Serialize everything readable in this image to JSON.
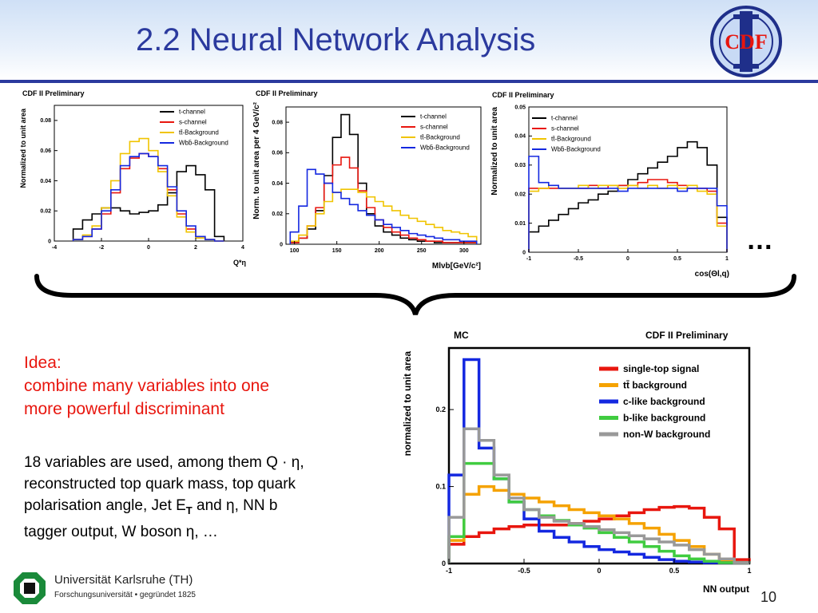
{
  "slide": {
    "title": "2.2 Neural Network Analysis",
    "logo_text": "CDF",
    "ellipsis": "…",
    "idea_lines": [
      "Idea:",
      "combine many variables into one",
      "more powerful discriminant"
    ],
    "body_parts": {
      "p1": "18 variables are used, among them Q · η,",
      "p2": "reconstructed top quark mass, top quark",
      "p3a": "polarisation angle, Jet E",
      "p3sub": "T",
      "p3b": " and η, NN b",
      "p4": "tagger output, W boson η, …"
    },
    "university": "Universität Karlsruhe (TH)",
    "university_sub": "Forschungsuniversität • gegründet 1825",
    "page_number": "10"
  },
  "colors": {
    "title": "#2b3a9e",
    "idea": "#e8160e",
    "tchannel": "#000000",
    "schannel": "#e8160e",
    "ttbar": "#f0c400",
    "wbb": "#1428e0",
    "nn_signal": "#e8160e",
    "nn_tt": "#f5a200",
    "nn_c": "#1428e0",
    "nn_b": "#40cc40",
    "nn_nonw": "#999999"
  },
  "chart_data": [
    {
      "type": "line",
      "title": "CDF II Preliminary",
      "xlabel": "Q*η",
      "ylabel": "Normalized to unit area",
      "xlim": [
        -4,
        4
      ],
      "ylim": [
        0,
        0.09
      ],
      "xticks": [
        "-4",
        "-2",
        "0",
        "2",
        "4"
      ],
      "yticks": [
        "0",
        "0.02",
        "0.04",
        "0.06",
        "0.08"
      ],
      "legend_position": "top-right",
      "x": [
        -3,
        -2.6,
        -2.2,
        -1.8,
        -1.4,
        -1.0,
        -0.6,
        -0.2,
        0.2,
        0.6,
        1.0,
        1.4,
        1.8,
        2.2,
        2.6,
        3.0
      ],
      "series": [
        {
          "name": "t-channel",
          "color": "#000000",
          "values": [
            0.008,
            0.014,
            0.018,
            0.022,
            0.022,
            0.02,
            0.018,
            0.019,
            0.02,
            0.024,
            0.032,
            0.046,
            0.05,
            0.044,
            0.034,
            0.003
          ]
        },
        {
          "name": "s-channel",
          "color": "#e8160e",
          "values": [
            0.001,
            0.003,
            0.008,
            0.018,
            0.032,
            0.048,
            0.055,
            0.058,
            0.056,
            0.048,
            0.034,
            0.018,
            0.008,
            0.003,
            0.001,
            0.0
          ]
        },
        {
          "name": "tt̄-Background",
          "color": "#f0c400",
          "values": [
            0.001,
            0.004,
            0.01,
            0.022,
            0.04,
            0.058,
            0.066,
            0.068,
            0.06,
            0.046,
            0.03,
            0.016,
            0.006,
            0.002,
            0.001,
            0.0
          ]
        },
        {
          "name": "Wbb̄-Background",
          "color": "#1428e0",
          "values": [
            0.001,
            0.003,
            0.008,
            0.02,
            0.034,
            0.05,
            0.056,
            0.058,
            0.056,
            0.05,
            0.036,
            0.02,
            0.01,
            0.003,
            0.001,
            0.0
          ]
        }
      ]
    },
    {
      "type": "line",
      "title": "CDF II Preliminary",
      "xlabel": "Mlνb[GeV/c²]",
      "ylabel": "Norm. to unit area per 4 GeV/c²",
      "xlim": [
        90,
        320
      ],
      "ylim": [
        0,
        0.09
      ],
      "xticks": [
        "100",
        "150",
        "200",
        "250",
        "300"
      ],
      "yticks": [
        "0",
        "0.02",
        "0.04",
        "0.06",
        "0.08"
      ],
      "legend_position": "top-right",
      "x": [
        100,
        110,
        120,
        130,
        140,
        150,
        160,
        170,
        180,
        190,
        200,
        210,
        220,
        230,
        240,
        250,
        260,
        270,
        280,
        290,
        300,
        310
      ],
      "series": [
        {
          "name": "t-channel",
          "color": "#000000",
          "values": [
            0.001,
            0.004,
            0.01,
            0.022,
            0.045,
            0.07,
            0.085,
            0.072,
            0.04,
            0.02,
            0.012,
            0.008,
            0.006,
            0.004,
            0.003,
            0.002,
            0.002,
            0.001,
            0.001,
            0.001,
            0.001,
            0.001
          ]
        },
        {
          "name": "s-channel",
          "color": "#e8160e",
          "values": [
            0.001,
            0.004,
            0.012,
            0.024,
            0.04,
            0.052,
            0.057,
            0.05,
            0.035,
            0.024,
            0.016,
            0.011,
            0.008,
            0.006,
            0.004,
            0.003,
            0.002,
            0.002,
            0.001,
            0.001,
            0.001,
            0.001
          ]
        },
        {
          "name": "tt̄-Background",
          "color": "#f0c400",
          "values": [
            0.002,
            0.006,
            0.012,
            0.02,
            0.028,
            0.034,
            0.036,
            0.036,
            0.034,
            0.031,
            0.028,
            0.025,
            0.022,
            0.019,
            0.017,
            0.015,
            0.013,
            0.011,
            0.009,
            0.008,
            0.007,
            0.005
          ]
        },
        {
          "name": "Wbb̄-Background",
          "color": "#1428e0",
          "values": [
            0.008,
            0.025,
            0.049,
            0.046,
            0.04,
            0.034,
            0.03,
            0.026,
            0.022,
            0.019,
            0.016,
            0.013,
            0.011,
            0.009,
            0.007,
            0.006,
            0.005,
            0.004,
            0.003,
            0.003,
            0.002,
            0.002
          ]
        }
      ]
    },
    {
      "type": "line",
      "title": "CDF II Preliminary",
      "xlabel": "cos(Θl,q)",
      "ylabel": "Normalized to unit area",
      "xlim": [
        -1,
        1
      ],
      "ylim": [
        0,
        0.05
      ],
      "xticks": [
        "-1",
        "-0.5",
        "0",
        "0.5",
        "1"
      ],
      "yticks": [
        "0",
        "0.01",
        "0.02",
        "0.03",
        "0.04",
        "0.05"
      ],
      "legend_position": "top-right",
      "x": [
        -0.95,
        -0.85,
        -0.75,
        -0.65,
        -0.55,
        -0.45,
        -0.35,
        -0.25,
        -0.15,
        -0.05,
        0.05,
        0.15,
        0.25,
        0.35,
        0.45,
        0.55,
        0.65,
        0.75,
        0.85,
        0.95
      ],
      "series": [
        {
          "name": "t-channel",
          "color": "#000000",
          "values": [
            0.007,
            0.009,
            0.011,
            0.013,
            0.015,
            0.017,
            0.018,
            0.02,
            0.021,
            0.023,
            0.025,
            0.027,
            0.029,
            0.031,
            0.033,
            0.036,
            0.038,
            0.036,
            0.03,
            0.012
          ]
        },
        {
          "name": "s-channel",
          "color": "#e8160e",
          "values": [
            0.022,
            0.022,
            0.022,
            0.022,
            0.022,
            0.022,
            0.023,
            0.022,
            0.023,
            0.023,
            0.023,
            0.024,
            0.025,
            0.025,
            0.024,
            0.023,
            0.022,
            0.022,
            0.021,
            0.01
          ]
        },
        {
          "name": "tt̄-Background",
          "color": "#f0c400",
          "values": [
            0.021,
            0.022,
            0.023,
            0.022,
            0.022,
            0.023,
            0.022,
            0.023,
            0.023,
            0.022,
            0.023,
            0.022,
            0.023,
            0.022,
            0.023,
            0.022,
            0.023,
            0.021,
            0.02,
            0.009
          ]
        },
        {
          "name": "Wbb̄-Background",
          "color": "#1428e0",
          "values": [
            0.033,
            0.024,
            0.023,
            0.022,
            0.022,
            0.022,
            0.022,
            0.022,
            0.022,
            0.021,
            0.022,
            0.022,
            0.022,
            0.022,
            0.022,
            0.021,
            0.022,
            0.022,
            0.022,
            0.016
          ]
        }
      ]
    },
    {
      "type": "line",
      "title": "CDF II Preliminary",
      "subtitle": "MC",
      "xlabel": "NN output",
      "ylabel": "normalized to unit area",
      "xlim": [
        -1,
        1
      ],
      "ylim": [
        0,
        0.28
      ],
      "xticks": [
        "-1",
        "-0.5",
        "0",
        "0.5",
        "1"
      ],
      "yticks": [
        "0",
        "0.1",
        "0.2"
      ],
      "legend_position": "top-right",
      "x": [
        -0.95,
        -0.85,
        -0.75,
        -0.65,
        -0.55,
        -0.45,
        -0.35,
        -0.25,
        -0.15,
        -0.05,
        0.05,
        0.15,
        0.25,
        0.35,
        0.45,
        0.55,
        0.65,
        0.75,
        0.85,
        0.95
      ],
      "series": [
        {
          "name": "single-top signal",
          "color": "#e8160e",
          "values": [
            0.025,
            0.035,
            0.04,
            0.045,
            0.048,
            0.05,
            0.05,
            0.05,
            0.052,
            0.055,
            0.058,
            0.062,
            0.066,
            0.07,
            0.073,
            0.074,
            0.072,
            0.06,
            0.045,
            0.005
          ]
        },
        {
          "name": "tt̄ background",
          "color": "#f5a200",
          "values": [
            0.03,
            0.09,
            0.1,
            0.095,
            0.09,
            0.085,
            0.08,
            0.075,
            0.07,
            0.066,
            0.062,
            0.058,
            0.052,
            0.046,
            0.038,
            0.03,
            0.022,
            0.012,
            0.004,
            0.001
          ]
        },
        {
          "name": "c-like background",
          "color": "#1428e0",
          "values": [
            0.115,
            0.265,
            0.15,
            0.11,
            0.08,
            0.058,
            0.042,
            0.034,
            0.028,
            0.022,
            0.018,
            0.015,
            0.012,
            0.008,
            0.005,
            0.003,
            0.002,
            0.001,
            0.001,
            0.001
          ]
        },
        {
          "name": "b-like background",
          "color": "#40cc40",
          "values": [
            0.035,
            0.13,
            0.13,
            0.11,
            0.08,
            0.07,
            0.062,
            0.056,
            0.05,
            0.046,
            0.04,
            0.034,
            0.028,
            0.022,
            0.016,
            0.01,
            0.006,
            0.003,
            0.001,
            0.001
          ]
        },
        {
          "name": "non-W background",
          "color": "#999999",
          "values": [
            0.06,
            0.175,
            0.16,
            0.115,
            0.085,
            0.07,
            0.06,
            0.055,
            0.052,
            0.048,
            0.044,
            0.04,
            0.036,
            0.032,
            0.028,
            0.024,
            0.018,
            0.012,
            0.006,
            0.001
          ]
        }
      ]
    }
  ]
}
